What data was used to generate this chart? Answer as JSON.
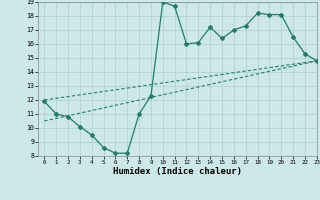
{
  "title": "",
  "xlabel": "Humidex (Indice chaleur)",
  "line1_x": [
    0,
    1,
    2,
    3,
    4,
    5,
    6,
    7,
    8,
    9,
    10,
    11,
    12,
    13,
    14,
    15,
    16,
    17,
    18,
    19,
    20,
    21,
    22,
    23
  ],
  "line1_y": [
    11.9,
    11.0,
    10.8,
    10.1,
    9.5,
    8.6,
    8.2,
    8.2,
    11.0,
    12.3,
    19.0,
    18.7,
    16.0,
    16.1,
    17.2,
    16.4,
    17.0,
    17.3,
    18.2,
    18.1,
    18.1,
    16.5,
    15.3,
    14.8
  ],
  "line2_x": [
    0,
    23
  ],
  "line2_y": [
    10.5,
    14.8
  ],
  "line3_x": [
    0,
    23
  ],
  "line3_y": [
    12.0,
    14.8
  ],
  "color": "#2a7a6b",
  "bg_color": "#cce8e8",
  "grid_color": "#aacfcf",
  "xlim": [
    -0.5,
    23
  ],
  "ylim": [
    8,
    19
  ],
  "yticks": [
    8,
    9,
    10,
    11,
    12,
    13,
    14,
    15,
    16,
    17,
    18,
    19
  ],
  "xticks": [
    0,
    1,
    2,
    3,
    4,
    5,
    6,
    7,
    8,
    9,
    10,
    11,
    12,
    13,
    14,
    15,
    16,
    17,
    18,
    19,
    20,
    21,
    22,
    23
  ]
}
